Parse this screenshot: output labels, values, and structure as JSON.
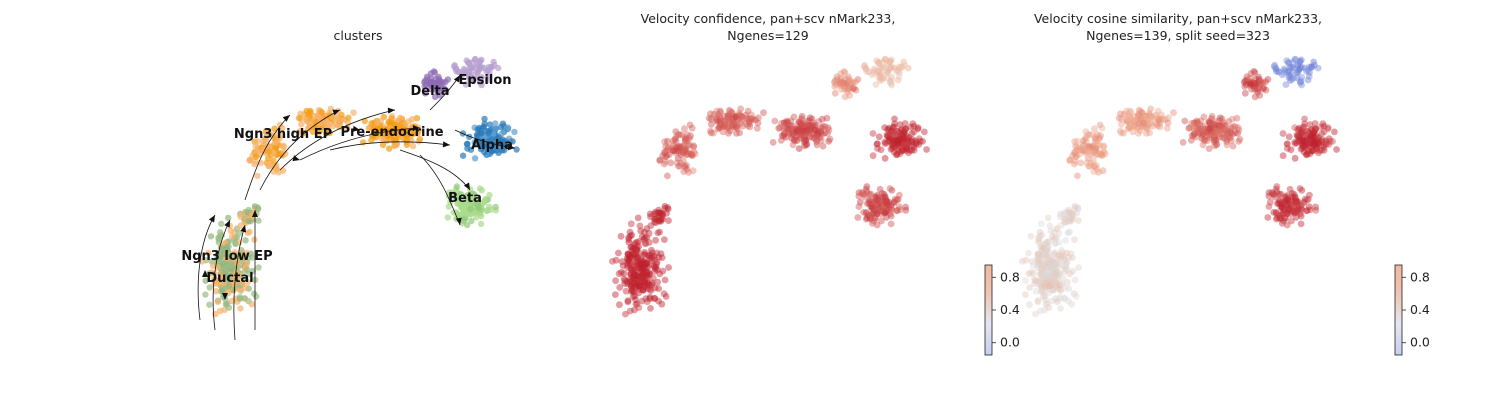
{
  "chart_data": [
    {
      "type": "scatter",
      "subtype": "umap-embedding-with-velocity-stream",
      "title": "clusters",
      "legend": "on data",
      "grid": false,
      "axes": "off",
      "clusters": [
        {
          "name": "Ngn3 low EP",
          "color": "#9bbc83"
        },
        {
          "name": "Ductal",
          "color": "#8fb47f"
        },
        {
          "name": "Ngn3 high EP",
          "color": "#f6b26b"
        },
        {
          "name": "Pre-endocrine",
          "color": "#f39c12"
        },
        {
          "name": "Delta",
          "color": "#8e6bb5"
        },
        {
          "name": "Epsilon",
          "color": "#b79fce"
        },
        {
          "name": "Alpha",
          "color": "#2b7bb9"
        },
        {
          "name": "Beta",
          "color": "#a9dc8c"
        }
      ]
    },
    {
      "type": "scatter",
      "subtype": "umap-embedding-colored",
      "title": "Velocity confidence, pan+scv nMark233,",
      "title_line2": "Ngenes=129",
      "colorbar": {
        "ticks": [
          "0.8",
          "0.4",
          "0.0"
        ],
        "values": [
          0.8,
          0.4,
          0.0
        ],
        "range": [
          -0.15,
          0.95
        ],
        "cmap": "coolwarm"
      },
      "grid": false,
      "axes": "off",
      "value_by_region": [
        {
          "region": "Ngn3 low EP / Ductal",
          "value": 0.95
        },
        {
          "region": "Ngn3 high EP",
          "value": 0.8
        },
        {
          "region": "Pre-endocrine",
          "value": 0.85
        },
        {
          "region": "Epsilon",
          "value": 0.55
        },
        {
          "region": "Alpha",
          "value": 0.93
        },
        {
          "region": "Beta",
          "value": 0.85
        }
      ]
    },
    {
      "type": "scatter",
      "subtype": "umap-embedding-colored",
      "title": "Velocity cosine similarity, pan+scv nMark233,",
      "title_line2": "Ngenes=139, split seed=323",
      "colorbar": {
        "ticks": [
          "0.8",
          "0.4",
          "0.0"
        ],
        "values": [
          0.8,
          0.4,
          0.0
        ],
        "range": [
          -0.15,
          0.95
        ],
        "cmap": "coolwarm"
      },
      "grid": false,
      "axes": "off",
      "value_by_region": [
        {
          "region": "Ngn3 low EP / Ductal",
          "value": 0.45
        },
        {
          "region": "Ngn3 high EP",
          "value": 0.65
        },
        {
          "region": "Pre-endocrine",
          "value": 0.8
        },
        {
          "region": "Epsilon",
          "value": 0.05
        },
        {
          "region": "Delta",
          "value": 0.85
        },
        {
          "region": "Alpha",
          "value": 0.92
        },
        {
          "region": "Beta",
          "value": 0.9
        }
      ]
    }
  ]
}
